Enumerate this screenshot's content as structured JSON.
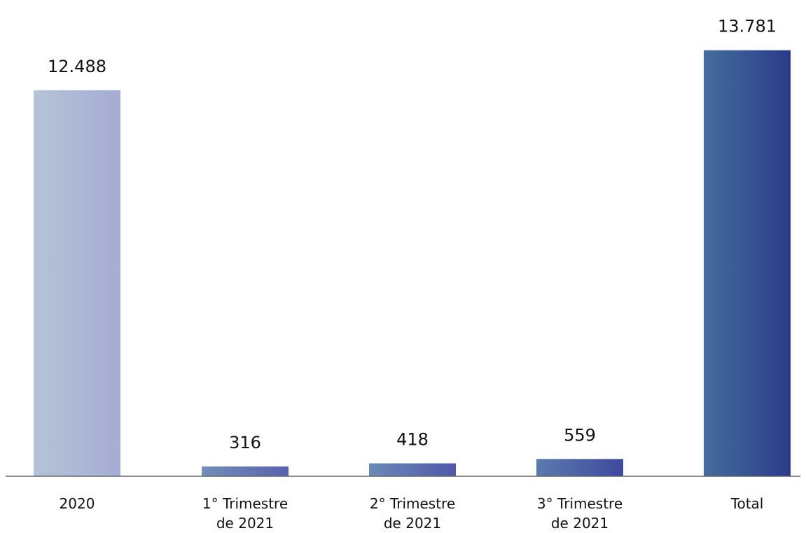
{
  "chart_data": {
    "type": "bar",
    "categories": [
      [
        "2020"
      ],
      [
        "1° Trimestre",
        "de 2021"
      ],
      [
        "2° Trimestre",
        "de 2021"
      ],
      [
        "3° Trimestre",
        "de 2021"
      ],
      [
        "Total"
      ]
    ],
    "values": [
      12488,
      316,
      418,
      559,
      13781
    ],
    "value_labels": [
      "12.488",
      "316",
      "418",
      "559",
      "13.781"
    ],
    "title": "",
    "xlabel": "",
    "ylabel": "",
    "ylim": [
      0,
      14500
    ],
    "grid": false,
    "legend": "none",
    "colors": {
      "bar_gradients": [
        [
          "#b4c3d6",
          "#a5acd6"
        ],
        [
          "#6f8fb8",
          "#5a62b0"
        ],
        [
          "#6a8ab6",
          "#5058aa"
        ],
        [
          "#5a7aac",
          "#3f4aa0"
        ],
        [
          "#446e9c",
          "#2b3a8a"
        ]
      ],
      "axis": "#666666",
      "text": "#111111"
    }
  }
}
